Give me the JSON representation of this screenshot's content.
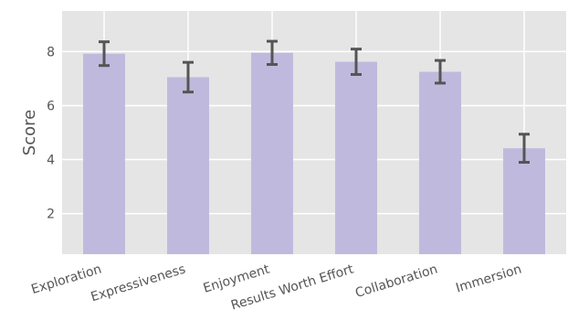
{
  "chart_data": {
    "type": "bar",
    "categories": [
      "Exploration",
      "Expressiveness",
      "Enjoyment",
      "Results Worth Effort",
      "Collaboration",
      "Immersion"
    ],
    "values": [
      7.92,
      7.05,
      7.95,
      7.62,
      7.25,
      4.42
    ],
    "error": [
      0.44,
      0.55,
      0.43,
      0.47,
      0.42,
      0.52
    ],
    "ylabel": "Score",
    "xlabel": "",
    "ylim": [
      0.5,
      9.5
    ],
    "yticks": [
      2,
      4,
      6,
      8
    ],
    "grid": true,
    "bar_color": "#bfbadd",
    "background_color": "#e5e5e5",
    "grid_color": "#ffffff",
    "errorbar_color": "#555555"
  }
}
